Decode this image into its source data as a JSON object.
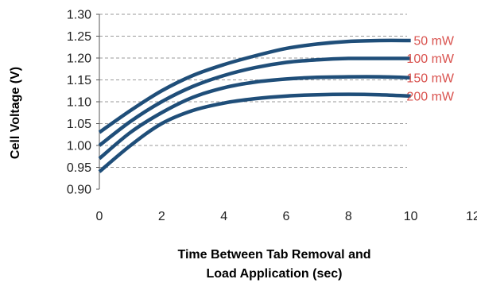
{
  "chart_data": {
    "type": "line",
    "title": "",
    "xlabel_lines": [
      "Time Between Tab Removal and",
      "Load Application (sec)"
    ],
    "ylabel": "Cell Voltage (V)",
    "xlim": [
      0,
      12
    ],
    "ylim": [
      0.9,
      1.3
    ],
    "x_ticks": [
      "0",
      "2",
      "4",
      "6",
      "8",
      "10",
      "12"
    ],
    "y_ticks": [
      "0.90",
      "0.95",
      "1.00",
      "1.05",
      "1.10",
      "1.15",
      "1.20",
      "1.25",
      "1.30"
    ],
    "grid": "horizontal dashed",
    "line_color": "#1F4E79",
    "label_color": "#D9534F",
    "series": [
      {
        "name": "50 mW",
        "x": [
          0,
          1,
          2,
          3,
          4,
          5,
          6,
          7,
          8,
          9,
          10
        ],
        "y": [
          1.03,
          1.08,
          1.125,
          1.16,
          1.185,
          1.205,
          1.222,
          1.232,
          1.238,
          1.24,
          1.24
        ]
      },
      {
        "name": "100 mW",
        "x": [
          0,
          1,
          2,
          3,
          4,
          5,
          6,
          7,
          8,
          9,
          10
        ],
        "y": [
          1.0,
          1.055,
          1.1,
          1.135,
          1.16,
          1.178,
          1.19,
          1.196,
          1.199,
          1.199,
          1.199
        ]
      },
      {
        "name": "150 mW",
        "x": [
          0,
          1,
          2,
          3,
          4,
          5,
          6,
          7,
          8,
          9,
          10
        ],
        "y": [
          0.97,
          1.03,
          1.075,
          1.11,
          1.132,
          1.145,
          1.152,
          1.156,
          1.157,
          1.157,
          1.155
        ]
      },
      {
        "name": "200 mW",
        "x": [
          0,
          1,
          2,
          3,
          4,
          5,
          6,
          7,
          8,
          9,
          10
        ],
        "y": [
          0.94,
          1.0,
          1.05,
          1.08,
          1.097,
          1.107,
          1.113,
          1.116,
          1.117,
          1.116,
          1.113
        ]
      }
    ]
  }
}
